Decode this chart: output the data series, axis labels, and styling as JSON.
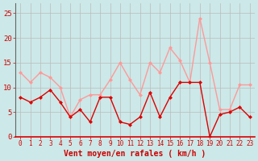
{
  "x": [
    0,
    1,
    2,
    3,
    4,
    5,
    6,
    7,
    8,
    9,
    10,
    11,
    12,
    13,
    14,
    15,
    16,
    17,
    18,
    19,
    20,
    21,
    22,
    23
  ],
  "wind_mean": [
    8,
    7,
    8,
    9.5,
    7,
    4,
    5.5,
    3,
    8,
    8,
    3,
    2.5,
    4,
    9,
    4,
    8,
    11,
    11,
    11,
    0,
    4.5,
    5,
    6,
    4
  ],
  "wind_gust": [
    13,
    11,
    13,
    12,
    10,
    4,
    7.5,
    8.5,
    8.5,
    11.5,
    15,
    11.5,
    8.5,
    15,
    13,
    18,
    15.5,
    11,
    24,
    15,
    5.5,
    5.5,
    10.5,
    10.5
  ],
  "xlabel": "Vent moyen/en rafales ( km/h )",
  "ylim": [
    0,
    27
  ],
  "yticks": [
    0,
    5,
    10,
    15,
    20,
    25
  ],
  "xlim": [
    -0.5,
    23.5
  ],
  "bg_color": "#cce8e8",
  "grid_color": "#bbbbbb",
  "mean_color": "#dd0000",
  "gust_color": "#ff9999",
  "xlabel_color": "#cc0000",
  "tick_color": "#cc0000",
  "left_spine_color": "#666666",
  "bottom_spine_color": "#dd0000",
  "marker": "D",
  "markersize": 2.5,
  "linewidth": 1.0,
  "xlabel_fontsize": 7,
  "tick_fontsize": 5.5,
  "ytick_fontsize": 6.5
}
